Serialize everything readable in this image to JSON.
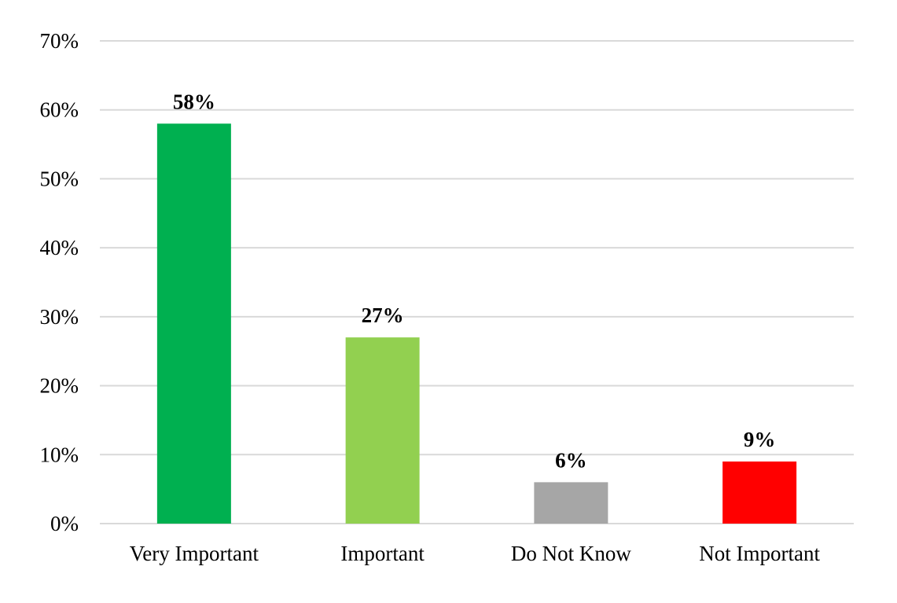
{
  "chart_data": {
    "type": "bar",
    "categories": [
      "Very Important",
      "Important",
      "Do Not Know",
      "Not Important"
    ],
    "values": [
      58,
      27,
      6,
      9
    ],
    "data_labels": [
      "58%",
      "27%",
      "6%",
      "9%"
    ],
    "colors": [
      "#00B050",
      "#92D050",
      "#A6A6A6",
      "#FF0000"
    ],
    "yticks": [
      0,
      10,
      20,
      30,
      40,
      50,
      60,
      70
    ],
    "ytick_labels": [
      "0%",
      "10%",
      "20%",
      "30%",
      "40%",
      "50%",
      "60%",
      "70%"
    ],
    "ylim": [
      0,
      70
    ],
    "title": "",
    "xlabel": "",
    "ylabel": "",
    "grid": "horizontal",
    "legend": "none"
  }
}
